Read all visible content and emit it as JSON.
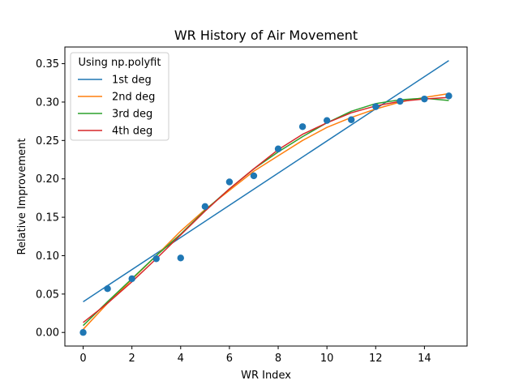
{
  "chart_data": {
    "type": "scatter",
    "title": "WR History of Air Movement",
    "xlabel": "WR Index",
    "ylabel": "Relative Improvement",
    "xlim": [
      -0.75,
      15.75
    ],
    "ylim": [
      -0.0177,
      0.3717
    ],
    "xticks": [
      "0",
      "2",
      "4",
      "6",
      "8",
      "10",
      "12",
      "14"
    ],
    "xtick_values": [
      0,
      2,
      4,
      6,
      8,
      10,
      12,
      14
    ],
    "yticks": [
      "0.00",
      "0.05",
      "0.10",
      "0.15",
      "0.20",
      "0.25",
      "0.30",
      "0.35"
    ],
    "ytick_values": [
      0.0,
      0.05,
      0.1,
      0.15,
      0.2,
      0.25,
      0.3,
      0.35
    ],
    "grid": false,
    "points": {
      "color": "#1f77b4",
      "x": [
        0,
        1,
        2,
        3,
        4,
        5,
        6,
        7,
        8,
        9,
        10,
        11,
        12,
        13,
        14,
        15
      ],
      "y": [
        0.0,
        0.057,
        0.07,
        0.096,
        0.097,
        0.164,
        0.196,
        0.204,
        0.239,
        0.268,
        0.276,
        0.277,
        0.294,
        0.301,
        0.304,
        0.308
      ]
    },
    "legend": {
      "title": "Using np.polyfit",
      "placement": "upper-left"
    },
    "series": [
      {
        "name": "1st deg",
        "color": "#1f77b4",
        "x": [
          0,
          15
        ],
        "y": [
          0.04,
          0.354
        ]
      },
      {
        "name": "2nd deg",
        "color": "#ff7f0e",
        "x": [
          0,
          1,
          2,
          3,
          4,
          5,
          6,
          7,
          8,
          9,
          10,
          11,
          12,
          13,
          14,
          15
        ],
        "y": [
          0.004,
          0.038,
          0.069,
          0.1,
          0.132,
          0.16,
          0.185,
          0.21,
          0.23,
          0.25,
          0.267,
          0.28,
          0.291,
          0.3,
          0.306,
          0.311
        ]
      },
      {
        "name": "3rd deg",
        "color": "#2ca02c",
        "x": [
          0,
          1,
          2,
          3,
          4,
          5,
          6,
          7,
          8,
          9,
          10,
          11,
          12,
          13,
          14,
          15
        ],
        "y": [
          0.009,
          0.04,
          0.07,
          0.1,
          0.128,
          0.159,
          0.187,
          0.213,
          0.235,
          0.255,
          0.273,
          0.288,
          0.298,
          0.303,
          0.305,
          0.302
        ]
      },
      {
        "name": "4th deg",
        "color": "#d62728",
        "x": [
          0,
          1,
          2,
          3,
          4,
          5,
          6,
          7,
          8,
          9,
          10,
          11,
          12,
          13,
          14,
          15
        ],
        "y": [
          0.013,
          0.038,
          0.066,
          0.096,
          0.127,
          0.158,
          0.187,
          0.213,
          0.238,
          0.258,
          0.273,
          0.286,
          0.295,
          0.301,
          0.304,
          0.306
        ]
      }
    ]
  }
}
